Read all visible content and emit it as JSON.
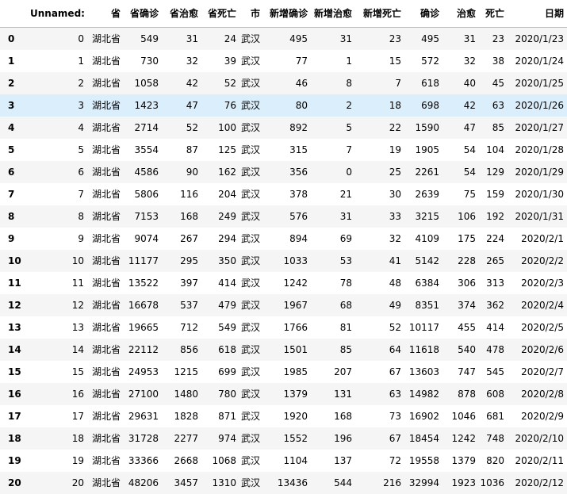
{
  "columns": [
    "Unnamed: 0",
    "省",
    "省确诊",
    "省治愈",
    "省死亡",
    "市",
    "新增确诊",
    "新增治愈",
    "新增死亡",
    "确诊",
    "治愈",
    "死亡",
    "日期"
  ],
  "rows": [
    {
      "index": "0",
      "cells": [
        "0",
        "湖北省",
        "549",
        "31",
        "24",
        "武汉",
        "495",
        "31",
        "23",
        "495",
        "31",
        "23",
        "2020/1/23"
      ]
    },
    {
      "index": "1",
      "cells": [
        "1",
        "湖北省",
        "730",
        "32",
        "39",
        "武汉",
        "77",
        "1",
        "15",
        "572",
        "32",
        "38",
        "2020/1/24"
      ]
    },
    {
      "index": "2",
      "cells": [
        "2",
        "湖北省",
        "1058",
        "42",
        "52",
        "武汉",
        "46",
        "8",
        "7",
        "618",
        "40",
        "45",
        "2020/1/25"
      ]
    },
    {
      "index": "3",
      "cells": [
        "3",
        "湖北省",
        "1423",
        "47",
        "76",
        "武汉",
        "80",
        "2",
        "18",
        "698",
        "42",
        "63",
        "2020/1/26"
      ]
    },
    {
      "index": "4",
      "cells": [
        "4",
        "湖北省",
        "2714",
        "52",
        "100",
        "武汉",
        "892",
        "5",
        "22",
        "1590",
        "47",
        "85",
        "2020/1/27"
      ]
    },
    {
      "index": "5",
      "cells": [
        "5",
        "湖北省",
        "3554",
        "87",
        "125",
        "武汉",
        "315",
        "7",
        "19",
        "1905",
        "54",
        "104",
        "2020/1/28"
      ]
    },
    {
      "index": "6",
      "cells": [
        "6",
        "湖北省",
        "4586",
        "90",
        "162",
        "武汉",
        "356",
        "0",
        "25",
        "2261",
        "54",
        "129",
        "2020/1/29"
      ]
    },
    {
      "index": "7",
      "cells": [
        "7",
        "湖北省",
        "5806",
        "116",
        "204",
        "武汉",
        "378",
        "21",
        "30",
        "2639",
        "75",
        "159",
        "2020/1/30"
      ]
    },
    {
      "index": "8",
      "cells": [
        "8",
        "湖北省",
        "7153",
        "168",
        "249",
        "武汉",
        "576",
        "31",
        "33",
        "3215",
        "106",
        "192",
        "2020/1/31"
      ]
    },
    {
      "index": "9",
      "cells": [
        "9",
        "湖北省",
        "9074",
        "267",
        "294",
        "武汉",
        "894",
        "69",
        "32",
        "4109",
        "175",
        "224",
        "2020/2/1"
      ]
    },
    {
      "index": "10",
      "cells": [
        "10",
        "湖北省",
        "11177",
        "295",
        "350",
        "武汉",
        "1033",
        "53",
        "41",
        "5142",
        "228",
        "265",
        "2020/2/2"
      ]
    },
    {
      "index": "11",
      "cells": [
        "11",
        "湖北省",
        "13522",
        "397",
        "414",
        "武汉",
        "1242",
        "78",
        "48",
        "6384",
        "306",
        "313",
        "2020/2/3"
      ]
    },
    {
      "index": "12",
      "cells": [
        "12",
        "湖北省",
        "16678",
        "537",
        "479",
        "武汉",
        "1967",
        "68",
        "49",
        "8351",
        "374",
        "362",
        "2020/2/4"
      ]
    },
    {
      "index": "13",
      "cells": [
        "13",
        "湖北省",
        "19665",
        "712",
        "549",
        "武汉",
        "1766",
        "81",
        "52",
        "10117",
        "455",
        "414",
        "2020/2/5"
      ]
    },
    {
      "index": "14",
      "cells": [
        "14",
        "湖北省",
        "22112",
        "856",
        "618",
        "武汉",
        "1501",
        "85",
        "64",
        "11618",
        "540",
        "478",
        "2020/2/6"
      ]
    },
    {
      "index": "15",
      "cells": [
        "15",
        "湖北省",
        "24953",
        "1215",
        "699",
        "武汉",
        "1985",
        "207",
        "67",
        "13603",
        "747",
        "545",
        "2020/2/7"
      ]
    },
    {
      "index": "16",
      "cells": [
        "16",
        "湖北省",
        "27100",
        "1480",
        "780",
        "武汉",
        "1379",
        "131",
        "63",
        "14982",
        "878",
        "608",
        "2020/2/8"
      ]
    },
    {
      "index": "17",
      "cells": [
        "17",
        "湖北省",
        "29631",
        "1828",
        "871",
        "武汉",
        "1920",
        "168",
        "73",
        "16902",
        "1046",
        "681",
        "2020/2/9"
      ]
    },
    {
      "index": "18",
      "cells": [
        "18",
        "湖北省",
        "31728",
        "2277",
        "974",
        "武汉",
        "1552",
        "196",
        "67",
        "18454",
        "1242",
        "748",
        "2020/2/10"
      ]
    },
    {
      "index": "19",
      "cells": [
        "19",
        "湖北省",
        "33366",
        "2668",
        "1068",
        "武汉",
        "1104",
        "137",
        "72",
        "19558",
        "1379",
        "820",
        "2020/2/11"
      ]
    },
    {
      "index": "20",
      "cells": [
        "20",
        "湖北省",
        "48206",
        "3457",
        "1310",
        "武汉",
        "13436",
        "544",
        "216",
        "32994",
        "1923",
        "1036",
        "2020/2/12"
      ]
    }
  ],
  "highlighted_row": 3,
  "colors": {
    "row_stripe": "#f5f5f5",
    "row_hover": "#dbeefc",
    "header_border": "#bdbdbd"
  }
}
